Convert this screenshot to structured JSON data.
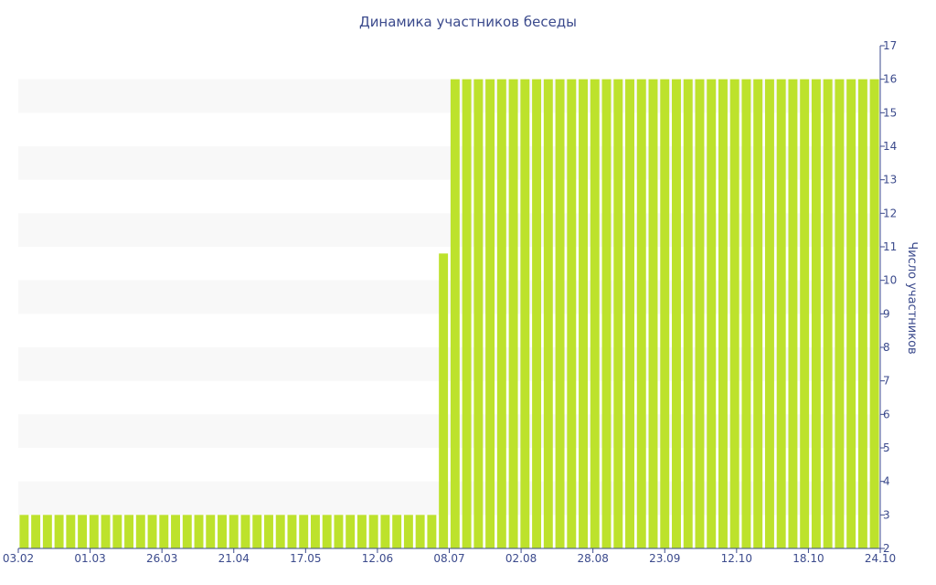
{
  "chart_data": {
    "type": "bar",
    "title": "Динамика участников беседы",
    "xlabel": "",
    "ylabel": "Число участников",
    "ylim": [
      2,
      17
    ],
    "y_axis_side": "right",
    "grid": "alternating horizontal bands",
    "x_ticks": [
      "03.02",
      "01.03",
      "26.03",
      "21.04",
      "17.05",
      "12.06",
      "08.07",
      "02.08",
      "28.08",
      "23.09",
      "12.10",
      "18.10",
      "24.10"
    ],
    "y_ticks": [
      2,
      3,
      4,
      5,
      6,
      7,
      8,
      9,
      10,
      11,
      12,
      13,
      14,
      15,
      16,
      17
    ],
    "values": [
      3,
      3,
      3,
      3,
      3,
      3,
      3,
      3,
      3,
      3,
      3,
      3,
      3,
      3,
      3,
      3,
      3,
      3,
      3,
      3,
      3,
      3,
      3,
      3,
      3,
      3,
      3,
      3,
      3,
      3,
      3,
      3,
      3,
      3,
      3,
      3,
      10.8,
      16,
      16,
      16,
      16,
      16,
      16,
      16,
      16,
      16,
      16,
      16,
      16,
      16,
      16,
      16,
      16,
      16,
      16,
      16,
      16,
      16,
      16,
      16,
      16,
      16,
      16,
      16,
      16,
      16,
      16,
      16,
      16,
      16,
      16,
      16,
      16,
      16
    ]
  },
  "colors": {
    "bar": "#bde22c",
    "band": "#f8f8f8",
    "text": "#3b4a8c",
    "axis": "#3b4a8c"
  }
}
